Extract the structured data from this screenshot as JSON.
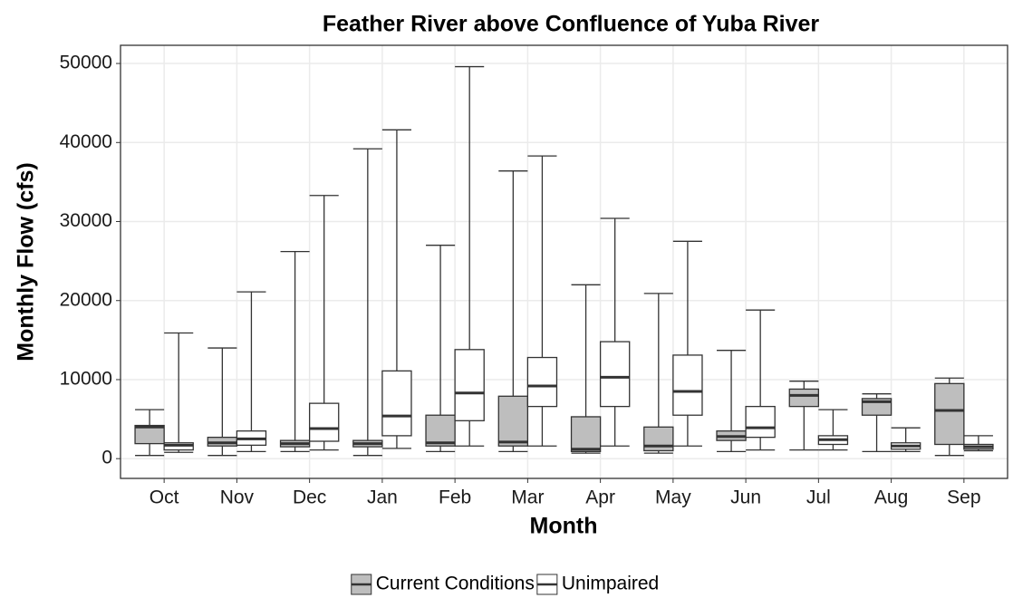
{
  "chart_data": {
    "type": "boxplot",
    "title": "Feather River above Confluence of Yuba River",
    "x_label": "Month",
    "y_label": "Monthly Flow (cfs)",
    "categories": [
      "Oct",
      "Nov",
      "Dec",
      "Jan",
      "Feb",
      "Mar",
      "Apr",
      "May",
      "Jun",
      "Jul",
      "Aug",
      "Sep"
    ],
    "series": [
      {
        "name": "Current Conditions",
        "color": "#bebebe",
        "min": [
          400,
          400,
          900,
          400,
          900,
          900,
          700,
          700,
          900,
          1100,
          900,
          400
        ],
        "q1": [
          1900,
          1600,
          1500,
          1500,
          1600,
          1600,
          900,
          1000,
          2300,
          6600,
          5500,
          1800
        ],
        "median": [
          4000,
          2000,
          1900,
          1900,
          2000,
          2100,
          1200,
          1600,
          2800,
          8000,
          7200,
          6100
        ],
        "q3": [
          4200,
          2700,
          2300,
          2300,
          5500,
          7900,
          5300,
          4000,
          3500,
          8800,
          7600,
          9500
        ],
        "max": [
          6200,
          14000,
          26200,
          39200,
          27000,
          36400,
          22000,
          20900,
          13700,
          9800,
          8200,
          10200
        ]
      },
      {
        "name": "Unimpaired",
        "color": "#ffffff",
        "min": [
          800,
          900,
          1100,
          1300,
          1600,
          1600,
          1600,
          1600,
          1100,
          1100,
          900,
          1000
        ],
        "q1": [
          1100,
          1700,
          2200,
          2900,
          4800,
          6600,
          6600,
          5500,
          2700,
          1800,
          1200,
          1200
        ],
        "median": [
          1700,
          2500,
          3800,
          5400,
          8300,
          9200,
          10300,
          8500,
          3900,
          2400,
          1600,
          1500
        ],
        "q3": [
          2000,
          3500,
          7000,
          11100,
          13800,
          12800,
          14800,
          13100,
          6600,
          2900,
          2000,
          1800
        ],
        "max": [
          15900,
          21100,
          33300,
          41600,
          49600,
          38300,
          30400,
          27500,
          18800,
          6200,
          3900,
          2900
        ]
      }
    ],
    "ylim": [
      -2500,
      52300
    ],
    "yticks": [
      0,
      10000,
      20000,
      30000,
      40000,
      50000
    ],
    "grid": true,
    "legend": "bottom"
  }
}
